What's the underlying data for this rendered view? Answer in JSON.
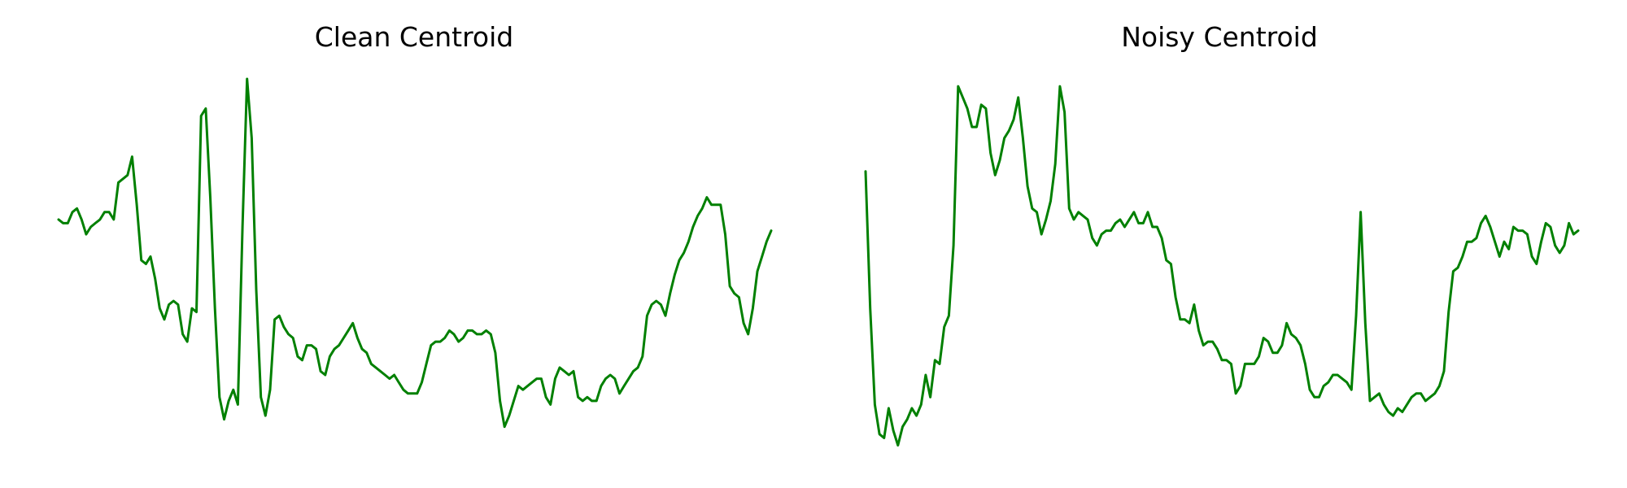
{
  "chart_data": [
    {
      "type": "line",
      "title": "Clean Centroid",
      "xlabel": "",
      "ylabel": "",
      "axes_visible": false,
      "grid": false,
      "line_color": "#008000",
      "ylim": [
        0,
        1
      ],
      "series": [
        {
          "values": [
            0.62,
            0.61,
            0.61,
            0.64,
            0.65,
            0.62,
            0.58,
            0.6,
            0.61,
            0.62,
            0.64,
            0.64,
            0.62,
            0.72,
            0.73,
            0.74,
            0.79,
            0.66,
            0.51,
            0.5,
            0.52,
            0.46,
            0.38,
            0.35,
            0.39,
            0.4,
            0.39,
            0.31,
            0.29,
            0.38,
            0.37,
            0.9,
            0.92,
            0.68,
            0.38,
            0.14,
            0.08,
            0.13,
            0.16,
            0.12,
            0.6,
            1.0,
            0.84,
            0.43,
            0.14,
            0.09,
            0.16,
            0.35,
            0.36,
            0.33,
            0.31,
            0.3,
            0.25,
            0.24,
            0.28,
            0.28,
            0.27,
            0.21,
            0.2,
            0.25,
            0.27,
            0.28,
            0.3,
            0.32,
            0.34,
            0.3,
            0.27,
            0.26,
            0.23,
            0.22,
            0.21,
            0.2,
            0.19,
            0.2,
            0.18,
            0.16,
            0.15,
            0.15,
            0.15,
            0.18,
            0.23,
            0.28,
            0.29,
            0.29,
            0.3,
            0.32,
            0.31,
            0.29,
            0.3,
            0.32,
            0.32,
            0.31,
            0.31,
            0.32,
            0.31,
            0.26,
            0.13,
            0.06,
            0.09,
            0.13,
            0.17,
            0.16,
            0.17,
            0.18,
            0.19,
            0.19,
            0.14,
            0.12,
            0.19,
            0.22,
            0.21,
            0.2,
            0.21,
            0.14,
            0.13,
            0.14,
            0.13,
            0.13,
            0.17,
            0.19,
            0.2,
            0.19,
            0.15,
            0.17,
            0.19,
            0.21,
            0.22,
            0.25,
            0.36,
            0.39,
            0.4,
            0.39,
            0.36,
            0.42,
            0.47,
            0.51,
            0.53,
            0.56,
            0.6,
            0.63,
            0.65,
            0.68,
            0.66,
            0.66,
            0.66,
            0.58,
            0.44,
            0.42,
            0.41,
            0.34,
            0.31,
            0.38,
            0.48,
            0.52,
            0.56,
            0.59
          ]
        }
      ]
    },
    {
      "type": "line",
      "title": "Noisy Centroid",
      "xlabel": "",
      "ylabel": "",
      "axes_visible": false,
      "grid": false,
      "line_color": "#008000",
      "ylim": [
        0,
        1
      ],
      "series": [
        {
          "values": [
            0.75,
            0.38,
            0.12,
            0.04,
            0.03,
            0.11,
            0.05,
            0.01,
            0.06,
            0.08,
            0.11,
            0.09,
            0.12,
            0.2,
            0.14,
            0.24,
            0.23,
            0.33,
            0.36,
            0.55,
            0.98,
            0.95,
            0.92,
            0.87,
            0.87,
            0.93,
            0.92,
            0.8,
            0.74,
            0.78,
            0.84,
            0.86,
            0.89,
            0.95,
            0.84,
            0.71,
            0.65,
            0.64,
            0.58,
            0.62,
            0.67,
            0.77,
            0.98,
            0.91,
            0.65,
            0.62,
            0.64,
            0.63,
            0.62,
            0.57,
            0.55,
            0.58,
            0.59,
            0.59,
            0.61,
            0.62,
            0.6,
            0.62,
            0.64,
            0.61,
            0.61,
            0.64,
            0.6,
            0.6,
            0.57,
            0.51,
            0.5,
            0.41,
            0.35,
            0.35,
            0.34,
            0.39,
            0.32,
            0.28,
            0.29,
            0.29,
            0.27,
            0.24,
            0.24,
            0.23,
            0.15,
            0.17,
            0.23,
            0.23,
            0.23,
            0.25,
            0.3,
            0.29,
            0.26,
            0.26,
            0.28,
            0.34,
            0.31,
            0.3,
            0.28,
            0.23,
            0.16,
            0.14,
            0.14,
            0.17,
            0.18,
            0.2,
            0.2,
            0.19,
            0.18,
            0.16,
            0.36,
            0.64,
            0.34,
            0.13,
            0.14,
            0.15,
            0.12,
            0.1,
            0.09,
            0.11,
            0.1,
            0.12,
            0.14,
            0.15,
            0.15,
            0.13,
            0.14,
            0.15,
            0.17,
            0.21,
            0.37,
            0.48,
            0.49,
            0.52,
            0.56,
            0.56,
            0.57,
            0.61,
            0.63,
            0.6,
            0.56,
            0.52,
            0.56,
            0.54,
            0.6,
            0.59,
            0.59,
            0.58,
            0.52,
            0.5,
            0.56,
            0.61,
            0.6,
            0.55,
            0.53,
            0.55,
            0.61,
            0.58,
            0.59
          ]
        }
      ]
    }
  ]
}
